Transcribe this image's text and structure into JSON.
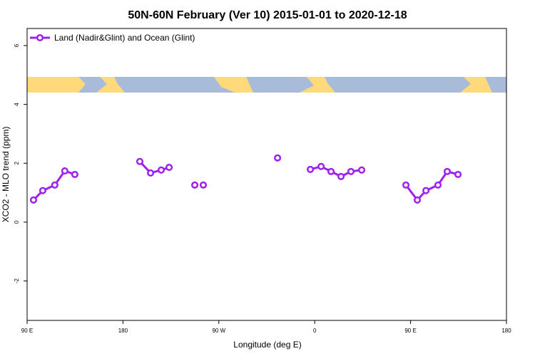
{
  "chart_data": {
    "type": "line",
    "title": "50N-60N February (Ver 10)   2015-01-01 to 2020-12-18",
    "x_label": "Longitude (deg E)",
    "y_label": "XCO2 - MLO trend (ppm)",
    "x": [
      96,
      104.7,
      116,
      125.4,
      134.8,
      165,
      195.8,
      205.9,
      215.9,
      223.3,
      235,
      247.4,
      251,
      255.4,
      290,
      325.1,
      340,
      355.9,
      366,
      375.3,
      384.7,
      394,
      404.1,
      425,
      445.6,
      456.3,
      464.4,
      475.7,
      484.4,
      494.5
    ],
    "series": [
      {
        "name": "Land (Nadir&Glint) and Ocean (Glint)",
        "color": "#a020f0",
        "values": [
          0.75,
          1.07,
          1.26,
          1.74,
          1.62,
          null,
          2.06,
          1.67,
          1.77,
          1.86,
          null,
          1.26,
          null,
          1.26,
          null,
          2.18,
          null,
          1.79,
          1.89,
          1.72,
          1.55,
          1.72,
          1.77,
          null,
          1.26,
          0.75,
          1.07,
          1.26,
          1.72,
          1.62
        ]
      }
    ],
    "xlim": [
      90,
      540
    ],
    "xticks": [
      {
        "value": 90,
        "label": "90 E"
      },
      {
        "value": 180,
        "label": "180"
      },
      {
        "value": 270,
        "label": "90 W"
      },
      {
        "value": 360,
        "label": "0"
      },
      {
        "value": 450,
        "label": "90 E"
      },
      {
        "value": 540,
        "label": "180"
      }
    ],
    "ylim": [
      -3.34,
      6.58
    ],
    "yticks": [
      -2,
      0,
      2,
      4,
      6
    ],
    "legend": "top-left",
    "grid": false
  }
}
